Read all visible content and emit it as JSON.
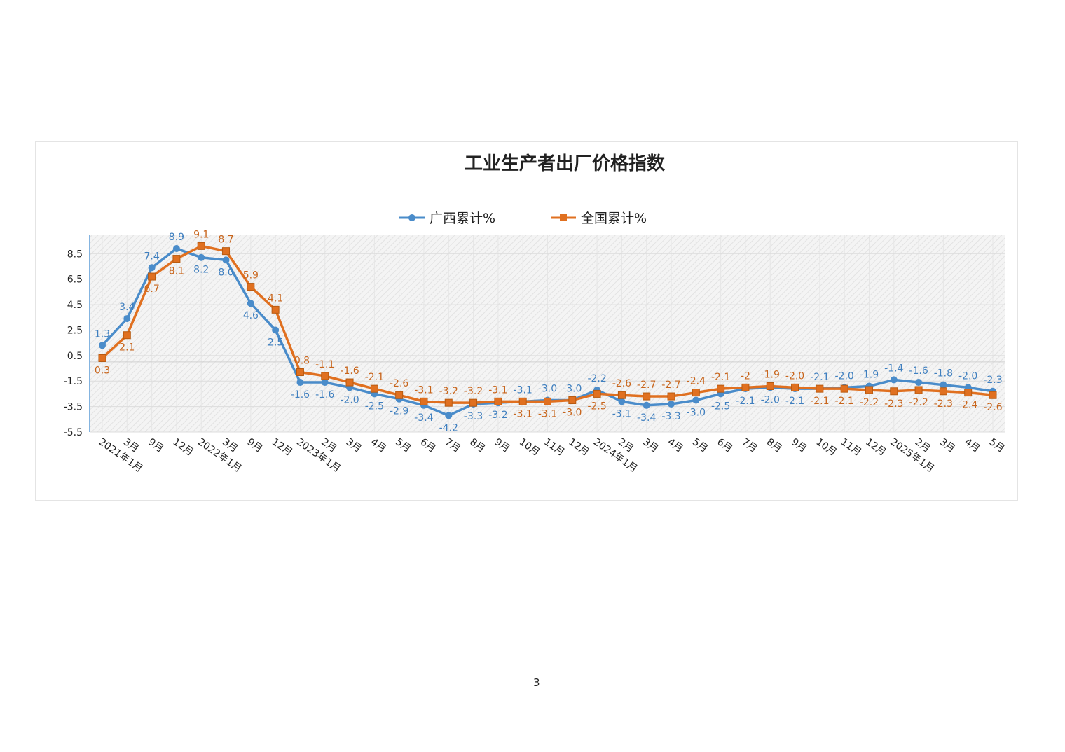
{
  "page_number": "3",
  "chart_data": {
    "type": "line",
    "title": "工业生产者出厂价格指数",
    "xlabel": "",
    "ylabel": "",
    "ylim": [
      -5.5,
      10
    ],
    "yticks": [
      -5.5,
      -3.5,
      -1.5,
      0.5,
      2.5,
      4.5,
      6.5,
      8.5
    ],
    "grid": true,
    "legend_position": "top",
    "categories": [
      "2021年1月",
      "3月",
      "9月",
      "12月",
      "2022年1月",
      "3月",
      "9月",
      "12月",
      "2023年1月",
      "2月",
      "3月",
      "4月",
      "5月",
      "6月",
      "7月",
      "8月",
      "9月",
      "10月",
      "11月",
      "12月",
      "2024年1月",
      "2月",
      "3月",
      "4月",
      "5月",
      "6月",
      "7月",
      "8月",
      "9月",
      "10月",
      "11月",
      "12月",
      "2025年1月",
      "2月",
      "3月",
      "4月",
      "5月"
    ],
    "series": [
      {
        "name": "广西累计%",
        "color": "#4a8cca",
        "marker": "circle",
        "values": [
          1.3,
          3.4,
          7.4,
          8.9,
          8.2,
          8.0,
          4.6,
          2.5,
          -1.6,
          -1.6,
          -2.0,
          -2.5,
          -2.9,
          -3.4,
          -4.2,
          -3.3,
          -3.2,
          -3.1,
          -3.0,
          -3.0,
          -2.2,
          -3.1,
          -3.4,
          -3.3,
          -3.0,
          -2.5,
          -2.1,
          -2.0,
          -2.1,
          -2.1,
          -2.0,
          -1.9,
          -1.4,
          -1.6,
          -1.8,
          -2.0,
          -2.3
        ],
        "labels": [
          "1.3",
          "3.4",
          "7.4",
          "8.9",
          "8.2",
          "8.0",
          "4.6",
          "2.5",
          "-1.6",
          "-1.6",
          "-2.0",
          "-2.5",
          "-2.9",
          "-3.4",
          "-4.2",
          "-3.3",
          "-3.2",
          "-3.1",
          "-3.0",
          "-3.0",
          "-2.2",
          "-3.1",
          "-3.4",
          "-3.3",
          "-3.0",
          "-2.5",
          "-2.1",
          "-2.0",
          "-2.1",
          "-2.1",
          "-2.0",
          "-1.9",
          "-1.4",
          "-1.6",
          "-1.8",
          "-2.0",
          "-2.3"
        ]
      },
      {
        "name": "全国累计%",
        "color": "#e07020",
        "marker": "square",
        "values": [
          0.3,
          2.1,
          6.7,
          8.1,
          9.1,
          8.7,
          5.9,
          4.1,
          -0.8,
          -1.1,
          -1.6,
          -2.1,
          -2.6,
          -3.1,
          -3.2,
          -3.2,
          -3.1,
          -3.1,
          -3.1,
          -3.0,
          -2.5,
          -2.6,
          -2.7,
          -2.7,
          -2.4,
          -2.1,
          -2.0,
          -1.9,
          -2.0,
          -2.1,
          -2.1,
          -2.2,
          -2.3,
          -2.2,
          -2.3,
          -2.4,
          -2.6
        ],
        "labels": [
          "0.3",
          "2.1",
          "6.7",
          "8.1",
          "9.1",
          "8.7",
          "5.9",
          "4.1",
          "-0.8",
          "-1.1",
          "-1.6",
          "-2.1",
          "-2.6",
          "-3.1",
          "-3.2",
          "-3.2",
          "-3.1",
          "-3.1",
          "-3.1",
          "-3.0",
          "-2.5",
          "-2.6",
          "-2.7",
          "-2.7",
          "-2.4",
          "-2.1",
          "-2",
          "-1.9",
          "-2.0",
          "-2.1",
          "-2.1",
          "-2.2",
          "-2.3",
          "-2.2",
          "-2.3",
          "-2.4",
          "-2.6"
        ]
      }
    ]
  }
}
